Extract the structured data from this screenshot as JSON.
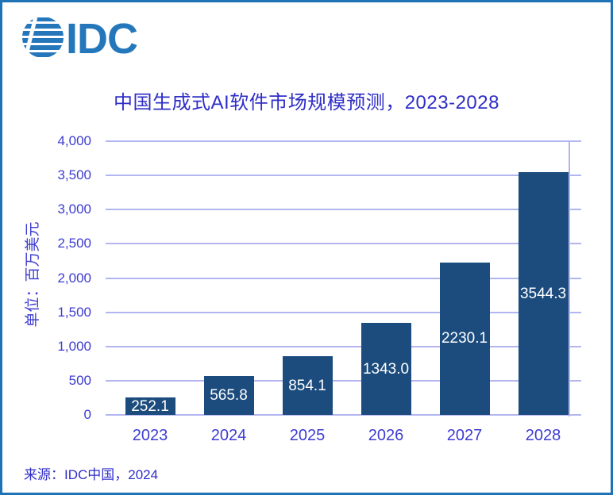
{
  "logo": {
    "text": "IDC"
  },
  "header": {
    "title": "中国生成式AI软件市场规模预测，2023-2028"
  },
  "footer": {
    "source": "来源：IDC中国，2024"
  },
  "chart_data": {
    "type": "bar",
    "title": "中国生成式AI软件市场规模预测，2023-2028",
    "categories": [
      "2023",
      "2024",
      "2025",
      "2026",
      "2027",
      "2028"
    ],
    "values": [
      252.1,
      565.8,
      854.1,
      1343.0,
      2230.1,
      3544.3
    ],
    "xlabel": "",
    "ylabel": "单位：百万美元",
    "ylim": [
      0,
      4000
    ],
    "ytick_step": 500,
    "ytick_labels": [
      "0",
      "500",
      "1,000",
      "1,500",
      "2,000",
      "2,500",
      "3,000",
      "3,500",
      "4,000"
    ],
    "grid": true,
    "legend": false,
    "value_labels_inside_bars": true
  },
  "colors": {
    "frame_border": "#1e72b6",
    "logo_blue": "#2577bc",
    "title_text": "#2f2ec8",
    "axis_text": "#3d3cd1",
    "bar_fill": "#1c4c7e",
    "gridline": "#b3b5f1",
    "value_label": "#ffffff"
  }
}
